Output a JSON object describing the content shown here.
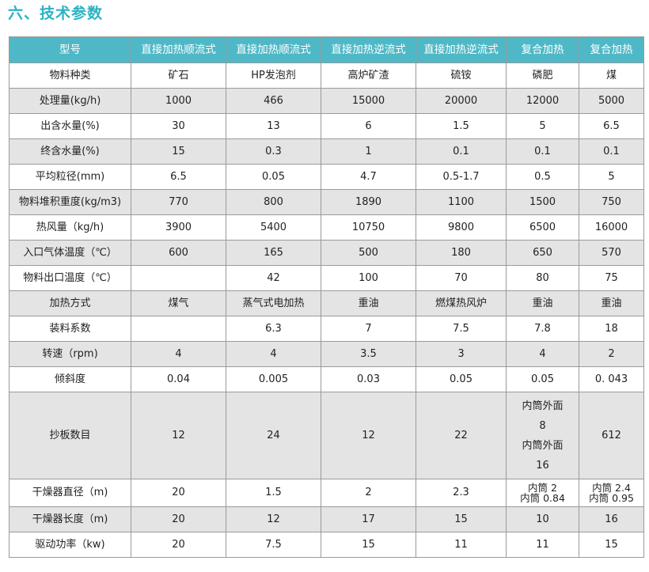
{
  "title": "六、技术参数",
  "headers": [
    "型号",
    "直接加热顺流式",
    "直接加热顺流式",
    "直接加热逆流式",
    "直接加热逆流式",
    "复合加热",
    "复合加热"
  ],
  "rows": [
    [
      "物料种类",
      "矿石",
      "HP发泡剂",
      "高炉矿渣",
      "硫铵",
      "磷肥",
      "煤"
    ],
    [
      "处理量(kg/h)",
      "1000",
      "466",
      "15000",
      "20000",
      "12000",
      "5000"
    ],
    [
      "出含水量(%)",
      "30",
      "13",
      "6",
      "1.5",
      "5",
      "6.5"
    ],
    [
      "终含水量(%)",
      "15",
      "0.3",
      "1",
      "0.1",
      "0.1",
      "0.1"
    ],
    [
      "平均粒径(mm)",
      "6.5",
      "0.05",
      "4.7",
      "0.5-1.7",
      "0.5",
      "5"
    ],
    [
      "物料堆积重度(kg/m3)",
      "770",
      "800",
      "1890",
      "1100",
      "1500",
      "750"
    ],
    [
      "热风量（kg/h)",
      "3900",
      "5400",
      "10750",
      "9800",
      "6500",
      "16000"
    ],
    [
      "入口气体温度（℃）",
      "600",
      "165",
      "500",
      "180",
      "650",
      "570"
    ],
    [
      "物料出口温度（℃）",
      "",
      "42",
      "100",
      "70",
      "80",
      "75"
    ],
    [
      "加热方式",
      "煤气",
      "蒸气式电加热",
      "重油",
      "燃煤热风炉",
      "重油",
      "重油"
    ],
    [
      "装料系数",
      "",
      "6.3",
      "7",
      "7.5",
      "7.8",
      "18"
    ],
    [
      "转速（rpm)",
      "4",
      "4",
      "3.5",
      "3",
      "4",
      "2"
    ],
    [
      "倾斜度",
      "0.04",
      "0.005",
      "0.03",
      "0.05",
      "0.05",
      "0. 043"
    ],
    [
      "抄板数目",
      "12",
      "24",
      "12",
      "22",
      [
        "内筒外面",
        "8",
        "内筒外面",
        "16"
      ],
      "612"
    ],
    [
      "干燥器直径（m)",
      "20",
      "1.5",
      "2",
      "2.3",
      [
        "内筒 2",
        "内筒 0.84"
      ],
      [
        "内筒 2.4",
        "内筒 0.95"
      ]
    ],
    [
      "干燥器长度（m)",
      "20",
      "12",
      "17",
      "15",
      "10",
      "16"
    ],
    [
      "驱动功率（kw)",
      "20",
      "7.5",
      "15",
      "11",
      "11",
      "15"
    ]
  ]
}
